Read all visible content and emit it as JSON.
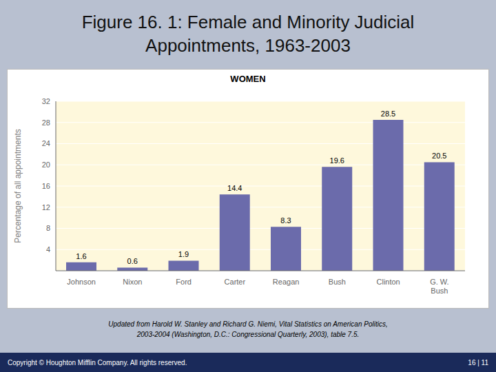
{
  "chart_data": {
    "type": "bar",
    "title": "Figure 16. 1: Female and Minority Judicial\nAppointments, 1963-2003",
    "subtitle": "WOMEN",
    "categories": [
      "Johnson",
      "Nixon",
      "Ford",
      "Carter",
      "Reagan",
      "Bush",
      "Clinton",
      "G. W.\nBush"
    ],
    "values": [
      1.6,
      0.6,
      1.9,
      14.4,
      8.3,
      19.6,
      28.5,
      20.5
    ],
    "color": "#6b6bab",
    "y_label": "Percentage of all appointments",
    "ylim": [
      0,
      32
    ],
    "yticks": [
      4,
      8,
      12,
      16,
      20,
      24,
      28,
      32
    ],
    "grid": true,
    "data_labels": true,
    "annotations": [
      "Updated from Harold W. Stanley and Richard G. Niemi, Vital Statistics on American Politics,\n2003-2004 (Washington, D.C.: Congressional Quarterly, 2003), table 7.5.",
      "Copyright © Houghton Mifflin Company. All rights reserved.",
      "16 | 11"
    ]
  }
}
